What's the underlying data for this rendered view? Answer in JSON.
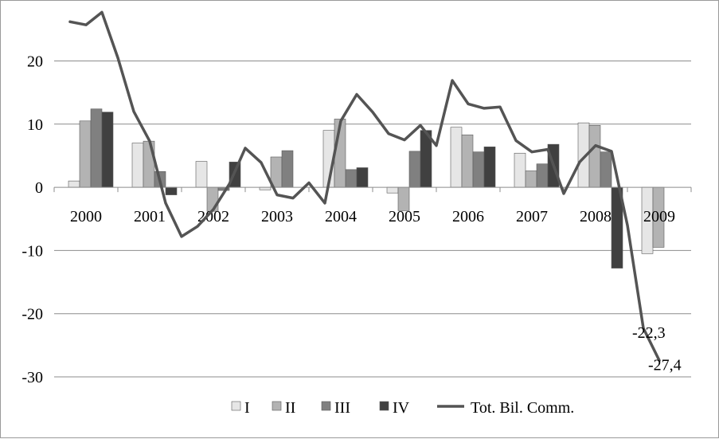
{
  "chart_data": {
    "type": "bar",
    "title": "",
    "xlabel": "",
    "ylabel": "",
    "categories": [
      "2000",
      "2001",
      "2002",
      "2003",
      "2004",
      "2005",
      "2006",
      "2007",
      "2008",
      "2009"
    ],
    "ylim": [
      -30,
      28
    ],
    "yticks": [
      -30,
      -20,
      -10,
      0,
      10,
      20
    ],
    "grid": true,
    "legend_position": "bottom",
    "series": [
      {
        "name": "I",
        "color": "#e6e6e6",
        "values": [
          1.0,
          7.0,
          4.1,
          -0.4,
          9.0,
          -0.9,
          9.5,
          5.4,
          10.2,
          -10.5
        ]
      },
      {
        "name": "II",
        "color": "#b3b3b3",
        "values": [
          10.5,
          7.3,
          -3.8,
          4.8,
          10.8,
          -3.7,
          8.3,
          2.6,
          9.8,
          -9.5
        ]
      },
      {
        "name": "III",
        "color": "#808080",
        "values": [
          12.4,
          2.5,
          -0.5,
          5.8,
          2.8,
          5.7,
          5.6,
          3.7,
          5.6,
          null
        ]
      },
      {
        "name": "IV",
        "color": "#404040",
        "values": [
          11.9,
          -1.2,
          4.0,
          null,
          3.1,
          9.0,
          6.4,
          6.8,
          -12.8,
          null
        ]
      }
    ],
    "line_series": {
      "name": "Tot. Bil. Comm.",
      "color": "#545454",
      "values": [
        26.2,
        25.7,
        27.7,
        20.5,
        12.0,
        7.3,
        -2.5,
        -7.8,
        -6.2,
        -3.5,
        0.5,
        6.2,
        3.9,
        -1.2,
        -1.7,
        0.7,
        -2.5,
        10.5,
        14.7,
        11.9,
        8.5,
        7.5,
        9.8,
        6.6,
        16.9,
        13.2,
        12.5,
        12.7,
        7.4,
        5.6,
        6.0,
        -1.0,
        4.0,
        6.6,
        5.7,
        -6.0,
        -22.3,
        -27.4
      ]
    },
    "data_labels": [
      {
        "point_index": 36,
        "text": "-22,3"
      },
      {
        "point_index": 37,
        "text": "-27,4"
      }
    ]
  }
}
